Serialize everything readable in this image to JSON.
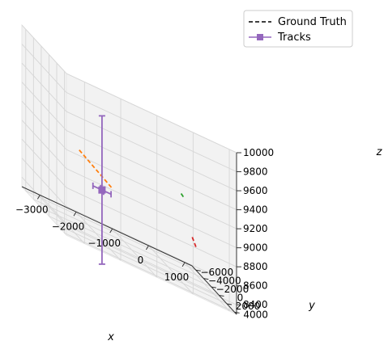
{
  "chart_data": {
    "type": "scatter",
    "projection": "3d",
    "grid": true,
    "legend_position": "top-right",
    "xlabel": "x",
    "ylabel": "y",
    "zlabel": "z",
    "xlim": [
      -3500,
      1200
    ],
    "ylim": [
      -7000,
      4500
    ],
    "zlim": [
      8300,
      10000
    ],
    "x_ticks": [
      "−3000",
      "−2000",
      "−1000",
      "0",
      "1000"
    ],
    "y_ticks": [
      "−6000",
      "−4000",
      "−2000",
      "0",
      "2000",
      "4000"
    ],
    "z_ticks": [
      "8400",
      "8600",
      "8800",
      "9000",
      "9200",
      "9400",
      "9600",
      "9800",
      "10000"
    ],
    "legend": [
      {
        "label": "Ground Truth",
        "style": "dashed",
        "color": "#000000"
      },
      {
        "label": "Tracks",
        "style": "line-square-marker",
        "color": "#9467bd"
      }
    ],
    "series": [
      {
        "name": "Ground Truth",
        "color": "#ff7f0e",
        "style": "dashed",
        "points": [
          {
            "x": -2900,
            "y": 2200,
            "z": 9200
          },
          {
            "x": -2000,
            "y": 2400,
            "z": 8960
          }
        ]
      },
      {
        "name": "Ground Truth",
        "color": "#2ca02c",
        "style": "dashed",
        "points": [
          {
            "x": 300,
            "y": -1400,
            "z": 9150
          },
          {
            "x": 380,
            "y": -1500,
            "z": 9120
          }
        ]
      },
      {
        "name": "Ground Truth",
        "color": "#d62728",
        "style": "dashed",
        "points": [
          {
            "x": 800,
            "y": -3200,
            "z": 8700
          },
          {
            "x": 950,
            "y": -3600,
            "z": 8600
          }
        ]
      },
      {
        "name": "Tracks",
        "color": "#9467bd",
        "style": "marker-errorbar",
        "points": [
          {
            "x": -2100,
            "y": 600,
            "z": 8850,
            "ex": 250,
            "ey": 400,
            "ez": 780
          }
        ]
      }
    ]
  }
}
